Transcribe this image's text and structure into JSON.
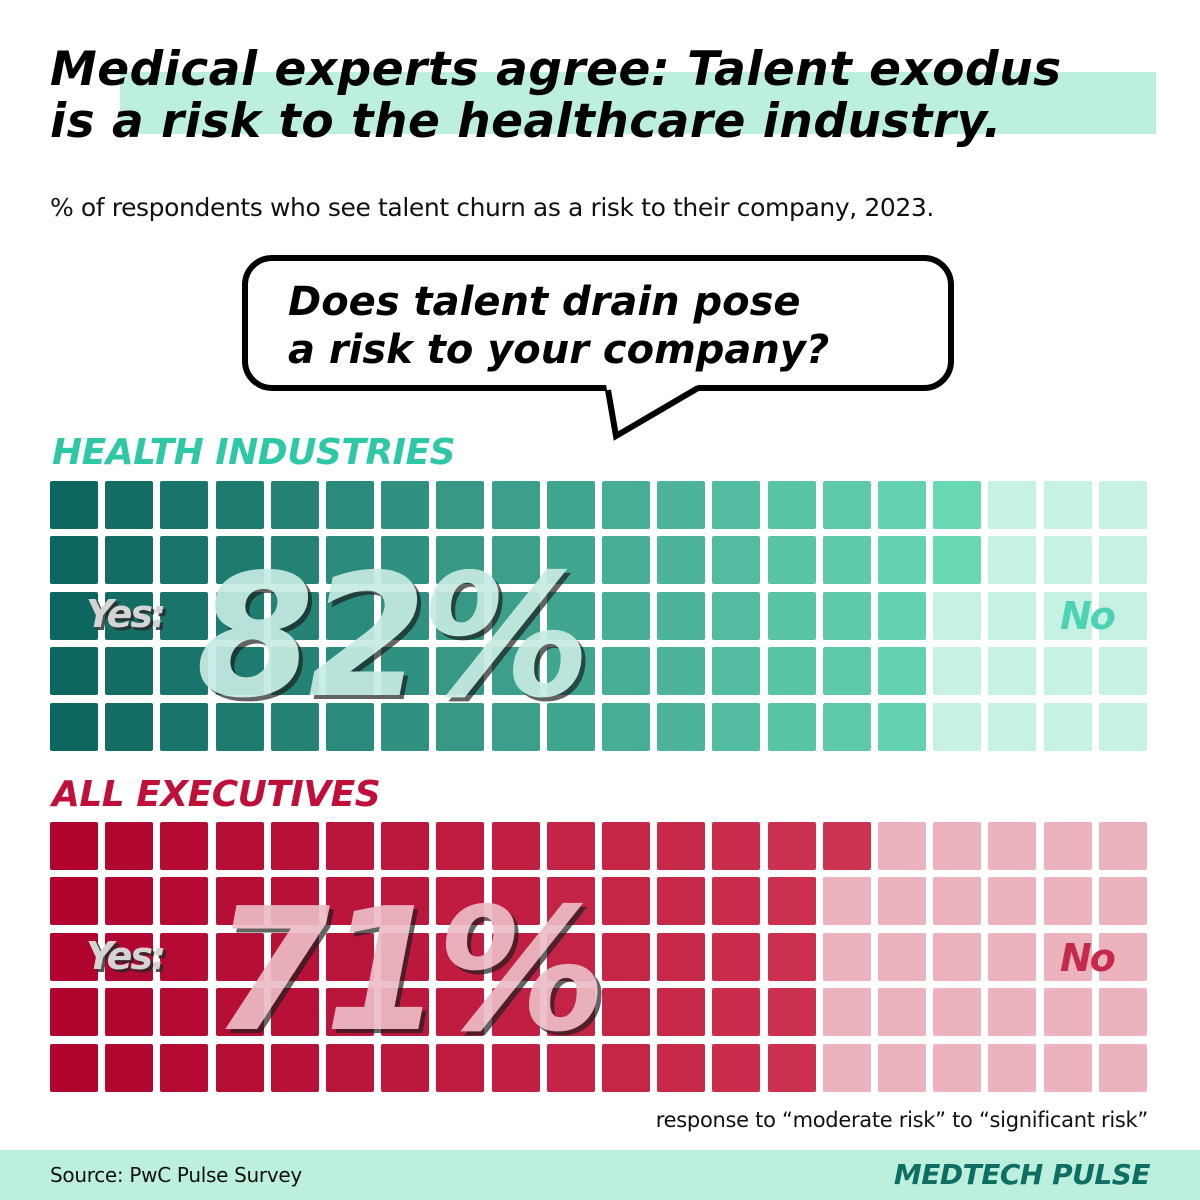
{
  "header": {
    "title_line1": "Medical experts agree: Talent exodus",
    "title_line2": "is a risk to the healthcare industry.",
    "subtitle": "% of respondents who see talent churn as a risk to their company, 2023."
  },
  "bubble": {
    "line1": "Does talent drain pose",
    "line2": "a risk to your company?"
  },
  "sections": [
    {
      "label": "HEALTH INDUSTRIES",
      "yes_label": "Yes:",
      "value_label": "82%",
      "no_label": "No",
      "colors": {
        "label": "#2ec8a6",
        "yes_start": "#0d6660",
        "yes_end": "#6ad8b5",
        "no": "#c6f2e2",
        "overlay": "#c6ebe2",
        "no_text": "#4ed2b4"
      }
    },
    {
      "label": "ALL EXECUTIVES",
      "yes_label": "Yes:",
      "value_label": "71%",
      "no_label": "No",
      "colors": {
        "label": "#c0103a",
        "yes_start": "#b0032e",
        "yes_end": "#cd3450",
        "no": "#ecb2bd",
        "overlay": "#ecbcc6",
        "no_text": "#c52a4c"
      }
    }
  ],
  "note": "response to “moderate risk” to “significant risk”",
  "footer": {
    "source": "Source: PwC Pulse Survey",
    "brand": "MEDTECH PULSE"
  },
  "chart_data": {
    "type": "waffle",
    "title": "Medical experts agree: Talent exodus is a risk to the healthcare industry.",
    "subtitle": "% of respondents who see talent churn as a risk to their company, 2023.",
    "question": "Does talent drain pose a risk to your company?",
    "grid": {
      "rows": 5,
      "cols": 20,
      "fill_order": "column-major"
    },
    "categories": [
      "Health Industries",
      "All Executives"
    ],
    "series": [
      {
        "name": "Yes",
        "values": [
          82,
          71
        ]
      },
      {
        "name": "No",
        "values": [
          18,
          29
        ]
      }
    ],
    "annotation": "response to “moderate risk” to “significant risk”",
    "source": "PwC Pulse Survey"
  }
}
